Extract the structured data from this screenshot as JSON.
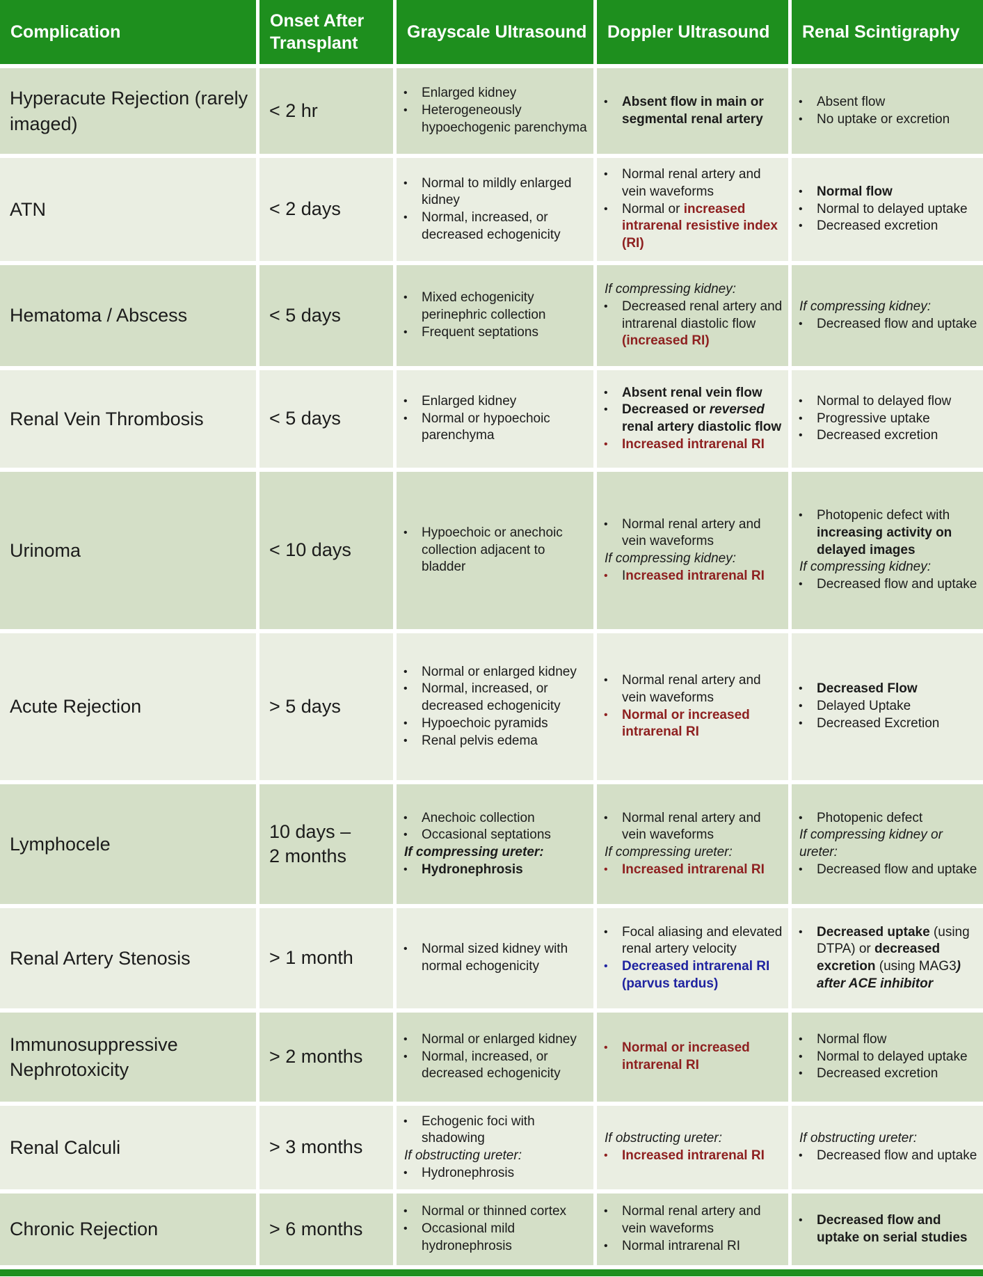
{
  "colors": {
    "header_green": "#1e8f1e",
    "accent_red": "#8e2020",
    "accent_blue": "#1f23a0",
    "row_sage": "#d4dfc7",
    "row_mist": "#eaeee2"
  },
  "header": {
    "columns": [
      {
        "key": "complication",
        "label": "Complication"
      },
      {
        "key": "onset",
        "label": "Onset After Transplant"
      },
      {
        "key": "grayscale",
        "label": "Grayscale Ultrasound"
      },
      {
        "key": "doppler",
        "label": "Doppler Ultrasound"
      },
      {
        "key": "scintigraphy",
        "label": "Renal Scintigraphy"
      }
    ]
  },
  "rows": [
    {
      "complication": "Hyperacute Rejection (rarely imaged)",
      "onset": "< 2 hr",
      "grayscale": [
        {
          "m": true,
          "seg": [
            {
              "t": "Enlarged kidney"
            }
          ]
        },
        {
          "m": true,
          "seg": [
            {
              "t": "Heterogeneously hypoechogenic parenchyma"
            }
          ]
        }
      ],
      "doppler": [
        {
          "m": true,
          "seg": [
            {
              "t": "Absent flow in main or segmental renal artery",
              "f": "b"
            }
          ]
        }
      ],
      "scintigraphy": [
        {
          "m": true,
          "seg": [
            {
              "t": "Absent flow"
            }
          ]
        },
        {
          "m": true,
          "seg": [
            {
              "t": "No uptake or excretion"
            }
          ]
        }
      ]
    },
    {
      "complication": "ATN",
      "onset": "< 2 days",
      "grayscale": [
        {
          "m": true,
          "seg": [
            {
              "t": "Normal to mildly enlarged kidney"
            }
          ]
        },
        {
          "m": true,
          "seg": [
            {
              "t": "Normal, increased, or decreased echogenicity"
            }
          ]
        }
      ],
      "doppler": [
        {
          "m": true,
          "seg": [
            {
              "t": "Normal renal artery and vein waveforms"
            }
          ]
        },
        {
          "m": true,
          "seg": [
            {
              "t": "Normal or "
            },
            {
              "t": "increased intrarenal resistive index (RI)",
              "f": "b",
              "c": "red"
            }
          ]
        }
      ],
      "scintigraphy": [
        {
          "m": true,
          "seg": [
            {
              "t": "Normal flow",
              "f": "b"
            }
          ]
        },
        {
          "m": true,
          "seg": [
            {
              "t": "Normal to delayed uptake"
            }
          ]
        },
        {
          "m": true,
          "seg": [
            {
              "t": "Decreased excretion"
            }
          ]
        }
      ]
    },
    {
      "complication": "Hematoma / Abscess",
      "onset": "< 5 days",
      "grayscale": [
        {
          "m": true,
          "seg": [
            {
              "t": "Mixed echogenicity perinephric collection"
            }
          ]
        },
        {
          "m": true,
          "seg": [
            {
              "t": "Frequent septations"
            }
          ]
        }
      ],
      "doppler": [
        {
          "m": false,
          "seg": [
            {
              "t": "If compressing kidney:",
              "f": "i"
            }
          ]
        },
        {
          "m": true,
          "seg": [
            {
              "t": "Decreased renal artery and intrarenal diastolic flow "
            },
            {
              "t": "(increased RI)",
              "f": "b",
              "c": "red"
            }
          ]
        }
      ],
      "scintigraphy": [
        {
          "m": false,
          "seg": [
            {
              "t": "If compressing kidney:",
              "f": "i"
            }
          ]
        },
        {
          "m": true,
          "seg": [
            {
              "t": "Decreased flow and uptake"
            }
          ]
        }
      ]
    },
    {
      "complication": "Renal Vein Thrombosis",
      "onset": "< 5 days",
      "grayscale": [
        {
          "m": true,
          "seg": [
            {
              "t": "Enlarged kidney"
            }
          ]
        },
        {
          "m": true,
          "seg": [
            {
              "t": "Normal or hypoechoic parenchyma"
            }
          ]
        }
      ],
      "doppler": [
        {
          "m": true,
          "seg": [
            {
              "t": "Absent renal vein flow",
              "f": "b"
            }
          ]
        },
        {
          "m": true,
          "seg": [
            {
              "t": "Decreased or ",
              "f": "b"
            },
            {
              "t": "reversed",
              "f": "bi"
            },
            {
              "t": " renal artery diastolic flow",
              "f": "b"
            }
          ]
        },
        {
          "m": true,
          "mc": "red",
          "seg": [
            {
              "t": "Increased intrarenal RI",
              "f": "b",
              "c": "red"
            }
          ]
        }
      ],
      "scintigraphy": [
        {
          "m": true,
          "seg": [
            {
              "t": "Normal to delayed flow"
            }
          ]
        },
        {
          "m": true,
          "seg": [
            {
              "t": "Progressive uptake"
            }
          ]
        },
        {
          "m": true,
          "seg": [
            {
              "t": "Decreased excretion"
            }
          ]
        }
      ]
    },
    {
      "complication": "Urinoma",
      "onset": "< 10 days",
      "grayscale": [
        {
          "m": true,
          "seg": [
            {
              "t": "Hypoechoic or anechoic collection adjacent to bladder"
            }
          ]
        }
      ],
      "doppler": [
        {
          "m": true,
          "seg": [
            {
              "t": "Normal renal artery and vein waveforms"
            }
          ]
        },
        {
          "m": false,
          "seg": [
            {
              "t": "If compressing kidney:",
              "f": "i"
            }
          ]
        },
        {
          "m": true,
          "mc": "red",
          "seg": [
            {
              "t": "I"
            },
            {
              "t": "ncreased intrarenal RI",
              "f": "b",
              "c": "red"
            }
          ]
        }
      ],
      "scintigraphy": [
        {
          "m": true,
          "seg": [
            {
              "t": "Photopenic defect with "
            },
            {
              "t": "increasing activity on delayed images",
              "f": "b"
            }
          ]
        },
        {
          "m": false,
          "seg": [
            {
              "t": "If compressing kidney:",
              "f": "i"
            }
          ]
        },
        {
          "m": true,
          "seg": [
            {
              "t": "Decreased flow and uptake"
            }
          ]
        }
      ]
    },
    {
      "complication": "Acute Rejection",
      "onset": "> 5 days",
      "grayscale": [
        {
          "m": true,
          "seg": [
            {
              "t": "Normal or enlarged kidney"
            }
          ]
        },
        {
          "m": true,
          "seg": [
            {
              "t": "Normal, increased, or decreased echogenicity"
            }
          ]
        },
        {
          "m": true,
          "seg": [
            {
              "t": "Hypoechoic pyramids"
            }
          ]
        },
        {
          "m": true,
          "seg": [
            {
              "t": "Renal pelvis edema"
            }
          ]
        }
      ],
      "doppler": [
        {
          "m": true,
          "seg": [
            {
              "t": "Normal renal artery and vein waveforms"
            }
          ]
        },
        {
          "m": true,
          "mc": "red",
          "seg": [
            {
              "t": "Normal or increased intrarenal RI",
              "f": "b",
              "c": "red"
            }
          ]
        }
      ],
      "scintigraphy": [
        {
          "m": true,
          "seg": [
            {
              "t": "Decreased Flow",
              "f": "b"
            }
          ]
        },
        {
          "m": true,
          "seg": [
            {
              "t": "Delayed Uptake"
            }
          ]
        },
        {
          "m": true,
          "seg": [
            {
              "t": "Decreased Excretion"
            }
          ]
        }
      ]
    },
    {
      "complication": "Lymphocele",
      "onset": "10 days –\n2 months",
      "grayscale": [
        {
          "m": true,
          "seg": [
            {
              "t": "Anechoic collection"
            }
          ]
        },
        {
          "m": true,
          "seg": [
            {
              "t": "Occasional septations"
            }
          ]
        },
        {
          "m": false,
          "seg": [
            {
              "t": "If compressing ureter:",
              "f": "bi"
            }
          ]
        },
        {
          "m": true,
          "seg": [
            {
              "t": "Hydronephrosis",
              "f": "b"
            }
          ]
        }
      ],
      "doppler": [
        {
          "m": true,
          "seg": [
            {
              "t": "Normal renal artery and vein waveforms"
            }
          ]
        },
        {
          "m": false,
          "seg": [
            {
              "t": "If compressing ureter:",
              "f": "i"
            }
          ]
        },
        {
          "m": true,
          "mc": "red",
          "seg": [
            {
              "t": "Increased intrarenal RI",
              "f": "b",
              "c": "red"
            }
          ]
        }
      ],
      "scintigraphy": [
        {
          "m": true,
          "seg": [
            {
              "t": "Photopenic defect"
            }
          ]
        },
        {
          "m": false,
          "seg": [
            {
              "t": "If compressing kidney or ureter:",
              "f": "i"
            }
          ]
        },
        {
          "m": true,
          "seg": [
            {
              "t": "Decreased flow and uptake"
            }
          ]
        }
      ]
    },
    {
      "complication": "Renal Artery Stenosis",
      "onset": "> 1 month",
      "grayscale": [
        {
          "m": true,
          "seg": [
            {
              "t": "Normal sized kidney with normal echogenicity"
            }
          ]
        }
      ],
      "doppler": [
        {
          "m": true,
          "seg": [
            {
              "t": "Focal aliasing and elevated renal artery velocity"
            }
          ]
        },
        {
          "m": true,
          "mc": "blue",
          "seg": [
            {
              "t": "Decreased intrarenal RI (parvus tardus)",
              "f": "b",
              "c": "blue"
            }
          ]
        }
      ],
      "scintigraphy": [
        {
          "m": true,
          "seg": [
            {
              "t": "Decreased uptake",
              "f": "b"
            },
            {
              "t": " (using DTPA) or "
            },
            {
              "t": "decreased excretion",
              "f": "b"
            },
            {
              "t": " (using MAG3"
            },
            {
              "t": ") after ACE inhibitor",
              "f": "bi"
            }
          ]
        }
      ]
    },
    {
      "complication": "Immunosuppressive Nephrotoxicity",
      "onset": "> 2 months",
      "grayscale": [
        {
          "m": true,
          "seg": [
            {
              "t": "Normal or enlarged kidney"
            }
          ]
        },
        {
          "m": true,
          "seg": [
            {
              "t": "Normal, increased, or decreased echogenicity"
            }
          ]
        }
      ],
      "doppler": [
        {
          "m": true,
          "mc": "red",
          "seg": [
            {
              "t": "Normal or increased intrarenal RI",
              "f": "b",
              "c": "red"
            }
          ]
        }
      ],
      "scintigraphy": [
        {
          "m": true,
          "seg": [
            {
              "t": "Normal flow"
            }
          ]
        },
        {
          "m": true,
          "seg": [
            {
              "t": "Normal to delayed uptake"
            }
          ]
        },
        {
          "m": true,
          "seg": [
            {
              "t": "Decreased excretion"
            }
          ]
        }
      ]
    },
    {
      "complication": "Renal Calculi",
      "onset": "> 3 months",
      "grayscale": [
        {
          "m": true,
          "seg": [
            {
              "t": "Echogenic foci with shadowing"
            }
          ]
        },
        {
          "m": false,
          "seg": [
            {
              "t": "If obstructing ureter:",
              "f": "i"
            }
          ]
        },
        {
          "m": true,
          "seg": [
            {
              "t": "Hydronephrosis"
            }
          ]
        }
      ],
      "doppler": [
        {
          "m": false,
          "seg": [
            {
              "t": "If obstructing ureter:",
              "f": "i"
            }
          ]
        },
        {
          "m": true,
          "mc": "red",
          "seg": [
            {
              "t": "Increased intrarenal RI",
              "f": "b",
              "c": "red"
            }
          ]
        }
      ],
      "scintigraphy": [
        {
          "m": false,
          "seg": [
            {
              "t": "If obstructing ureter:",
              "f": "i"
            }
          ]
        },
        {
          "m": true,
          "seg": [
            {
              "t": "Decreased flow and uptake"
            }
          ]
        }
      ]
    },
    {
      "complication": "Chronic Rejection",
      "onset": "> 6 months",
      "grayscale": [
        {
          "m": true,
          "seg": [
            {
              "t": "Normal or thinned cortex"
            }
          ]
        },
        {
          "m": true,
          "seg": [
            {
              "t": "Occasional mild hydronephrosis"
            }
          ]
        }
      ],
      "doppler": [
        {
          "m": true,
          "seg": [
            {
              "t": "Normal renal artery and vein waveforms"
            }
          ]
        },
        {
          "m": true,
          "seg": [
            {
              "t": "Normal intrarenal RI"
            }
          ]
        }
      ],
      "scintigraphy": [
        {
          "m": true,
          "seg": [
            {
              "t": "Decreased flow and uptake on serial studies",
              "f": "b"
            }
          ]
        }
      ]
    }
  ]
}
